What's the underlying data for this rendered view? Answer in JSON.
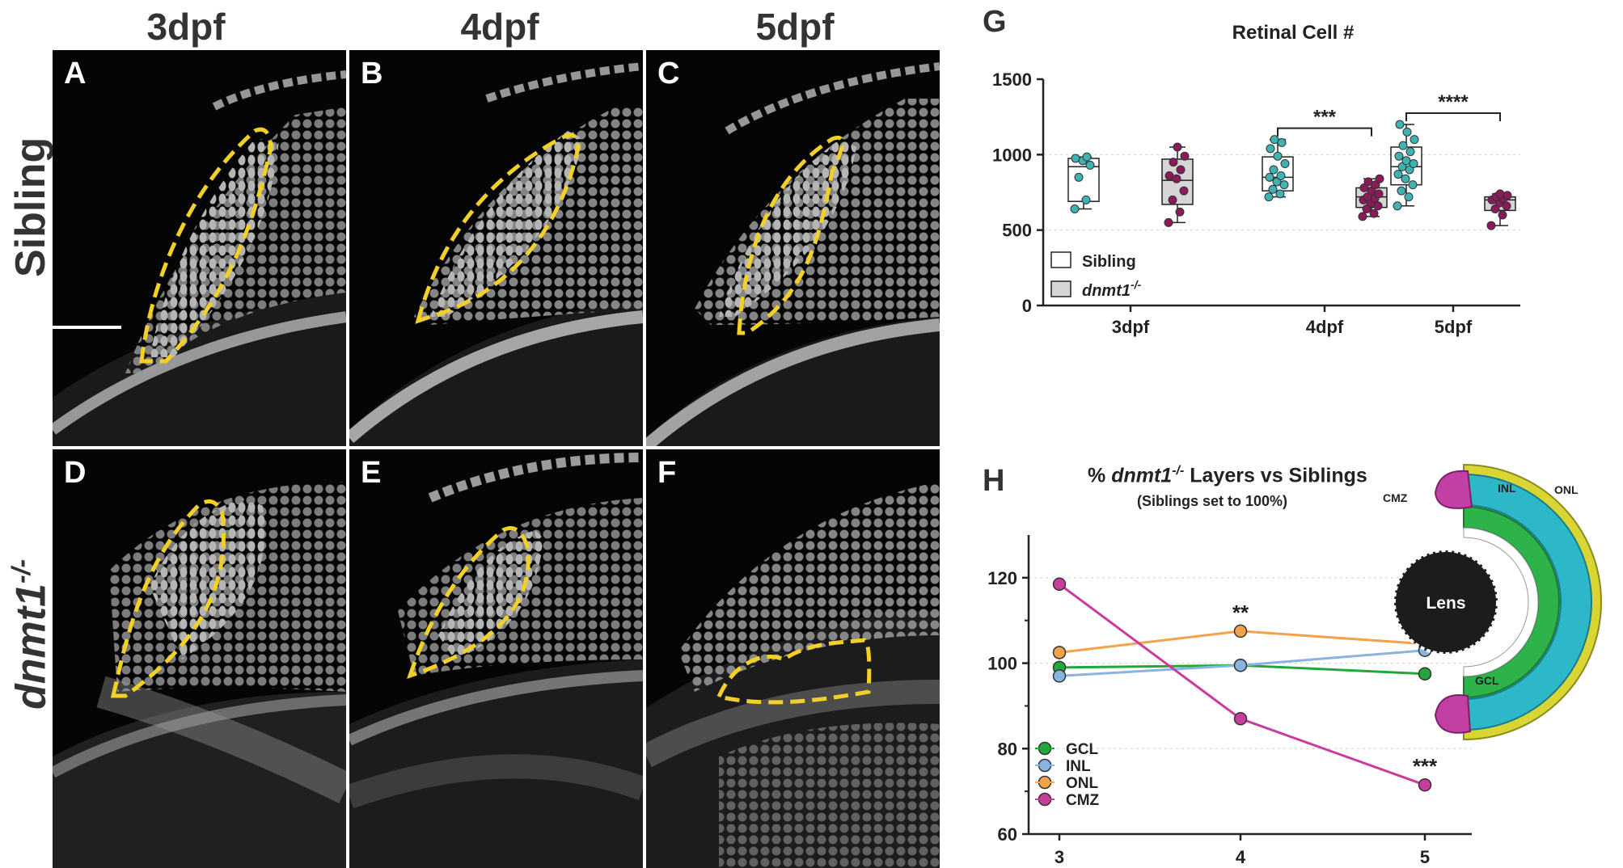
{
  "columns": [
    "3dpf",
    "4dpf",
    "5dpf"
  ],
  "rows": [
    {
      "label": "Sibling",
      "label_sup": ""
    },
    {
      "label": "dnmt1",
      "label_sup": "-/-"
    }
  ],
  "panels": [
    "A",
    "B",
    "C",
    "D",
    "E",
    "F"
  ],
  "panelG": {
    "letter": "G",
    "chart_data": {
      "type": "box",
      "title": "Retinal Cell #",
      "categories": [
        "3dpf",
        "4dpf",
        "5dpf"
      ],
      "ylim": [
        0,
        1500
      ],
      "yticks": [
        "0",
        "500",
        "1000",
        "1500"
      ],
      "grid": "horizontal dotted",
      "legend": {
        "position": "bottom-left",
        "items": [
          {
            "label": "Sibling",
            "sup": "",
            "fill": "#ffffff"
          },
          {
            "label": "dnmt1",
            "sup": "-/-",
            "fill": "#d6d6d6"
          }
        ]
      },
      "series": [
        {
          "name": "Sibling",
          "point_color": "#3fb3b3",
          "boxes": [
            {
              "min": 640,
              "q1": 690,
              "median": 920,
              "q3": 975,
              "max": 985,
              "points": [
                640,
                700,
                850,
                930,
                960,
                975,
                985
              ]
            },
            {
              "min": 720,
              "q1": 760,
              "median": 850,
              "q3": 985,
              "max": 1100,
              "points": [
                720,
                740,
                770,
                800,
                820,
                850,
                860,
                900,
                940,
                990,
                1040,
                1080,
                1100
              ]
            },
            {
              "min": 660,
              "q1": 800,
              "median": 920,
              "q3": 1050,
              "max": 1200,
              "points": [
                660,
                720,
                760,
                800,
                840,
                870,
                900,
                920,
                940,
                960,
                990,
                1020,
                1060,
                1100,
                1150,
                1200
              ]
            }
          ]
        },
        {
          "name": "dnmt1",
          "point_color": "#8b1a5a",
          "boxes": [
            {
              "min": 550,
              "q1": 670,
              "median": 830,
              "q3": 970,
              "max": 1050,
              "points": [
                550,
                620,
                700,
                760,
                840,
                860,
                900,
                950,
                990,
                1050
              ]
            },
            {
              "min": 590,
              "q1": 650,
              "median": 720,
              "q3": 780,
              "max": 840,
              "points": [
                590,
                610,
                640,
                660,
                680,
                700,
                710,
                720,
                740,
                760,
                780,
                800,
                820,
                840
              ]
            },
            {
              "min": 530,
              "q1": 630,
              "median": 700,
              "q3": 720,
              "max": 740,
              "points": [
                530,
                600,
                640,
                660,
                680,
                700,
                710,
                720,
                730,
                740
              ]
            }
          ]
        }
      ],
      "significance": [
        {
          "category": "4dpf",
          "label": "***"
        },
        {
          "category": "5dpf",
          "label": "****"
        }
      ]
    }
  },
  "panelH": {
    "letter": "H",
    "title_pre": "% ",
    "title_italic": "dnmt1",
    "title_sup": "-/-",
    "title_post": " Layers vs Siblings",
    "subtitle": "(Siblings set to 100%)",
    "chart_data": {
      "type": "line",
      "x": [
        3,
        4,
        5
      ],
      "xticks": [
        "3",
        "4",
        "5"
      ],
      "ylim": [
        60,
        130
      ],
      "yticks": [
        "60",
        "80",
        "100",
        "120"
      ],
      "grid": "horizontal dotted",
      "legend": {
        "position": "bottom-left"
      },
      "series": [
        {
          "name": "GCL",
          "values": [
            99,
            99.5,
            97.5
          ],
          "color": "#22a83a"
        },
        {
          "name": "INL",
          "values": [
            97,
            99.5,
            103
          ],
          "color": "#8ab4e0"
        },
        {
          "name": "ONL",
          "values": [
            102.5,
            107.5,
            104.5
          ],
          "color": "#f2a24a"
        },
        {
          "name": "CMZ",
          "values": [
            118.5,
            87,
            71.5
          ],
          "color": "#c93c9e"
        }
      ],
      "annotations": [
        {
          "x": 4,
          "y": 107.5,
          "label": "**"
        },
        {
          "x": 5,
          "y": 71.5,
          "label": "***"
        }
      ]
    },
    "diagram": {
      "labels": {
        "cmz": "CMZ",
        "inl": "INL",
        "onl": "ONL",
        "gcl": "GCL",
        "lens": "Lens"
      },
      "colors": {
        "onl": "#d9d633",
        "inl": "#2cb8c9",
        "gcl": "#2db34a",
        "cmz": "#c23fa4",
        "lens": "#1c1c1c"
      }
    }
  }
}
